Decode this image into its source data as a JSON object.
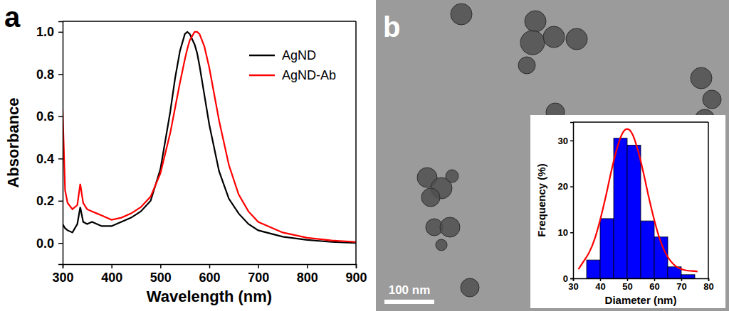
{
  "chart_data": [
    {
      "type": "line",
      "panel": "a",
      "x_label": "Wavelength (nm)",
      "y_label": "Absorbance",
      "x": [
        300,
        305,
        310,
        320,
        330,
        336,
        342,
        350,
        360,
        370,
        380,
        400,
        420,
        440,
        460,
        480,
        500,
        520,
        530,
        540,
        550,
        555,
        560,
        570,
        575,
        580,
        590,
        600,
        620,
        640,
        660,
        680,
        700,
        750,
        800,
        850,
        900
      ],
      "series": [
        {
          "name": "AgND",
          "color": "#000000",
          "values": [
            0.09,
            0.07,
            0.06,
            0.05,
            0.09,
            0.17,
            0.1,
            0.09,
            0.1,
            0.09,
            0.08,
            0.08,
            0.1,
            0.12,
            0.15,
            0.2,
            0.35,
            0.62,
            0.78,
            0.91,
            0.99,
            1.0,
            0.99,
            0.94,
            0.9,
            0.84,
            0.7,
            0.56,
            0.34,
            0.21,
            0.14,
            0.09,
            0.06,
            0.03,
            0.015,
            0.005,
            0.0
          ]
        },
        {
          "name": "AgND-Ab",
          "color": "#ff0000",
          "values": [
            0.63,
            0.25,
            0.19,
            0.16,
            0.18,
            0.28,
            0.19,
            0.16,
            0.15,
            0.14,
            0.13,
            0.11,
            0.12,
            0.14,
            0.17,
            0.22,
            0.33,
            0.52,
            0.64,
            0.76,
            0.87,
            0.92,
            0.96,
            1.0,
            1.0,
            0.99,
            0.93,
            0.83,
            0.58,
            0.37,
            0.23,
            0.15,
            0.1,
            0.05,
            0.025,
            0.012,
            0.005
          ]
        }
      ],
      "xlim": [
        300,
        900
      ],
      "xticks": [
        300,
        400,
        500,
        600,
        700,
        800,
        900
      ],
      "ylim": [
        -0.1,
        1.05
      ],
      "yticks": [
        {
          "value": 0,
          "label": "0.0"
        },
        {
          "value": 0.2,
          "label": "0.2"
        },
        {
          "value": 0.4,
          "label": "0.4"
        },
        {
          "value": 0.6,
          "label": "0.6"
        },
        {
          "value": 0.8,
          "label": "0.8"
        },
        {
          "value": 1.0,
          "label": "1.0"
        }
      ],
      "legend": "top-right"
    },
    {
      "type": "histogram",
      "panel": "b",
      "annotations": [
        "100 nm"
      ],
      "x_label": "Diameter (nm)",
      "y_label": "Frequency (%)",
      "bins": [
        35,
        40,
        45,
        50,
        55,
        60,
        65,
        70,
        75
      ],
      "values": [
        4,
        13,
        30.5,
        29,
        12.5,
        9,
        2.5,
        0.8
      ],
      "color": "#0000ff",
      "fit": {
        "color": "#ff0000",
        "x": [
          32,
          34,
          36,
          38,
          40,
          42,
          44,
          46,
          48,
          50,
          52,
          54,
          56,
          58,
          60,
          62,
          64,
          66,
          68,
          70,
          72,
          74,
          76
        ],
        "values": [
          2.0,
          3.8,
          5.7,
          8.6,
          12.7,
          17.6,
          23.0,
          27.8,
          31.3,
          32.5,
          31.3,
          27.8,
          23.0,
          17.6,
          12.7,
          8.6,
          5.7,
          3.8,
          2.6,
          2.0,
          1.7,
          1.6,
          1.5
        ]
      },
      "xlim": [
        30,
        80
      ],
      "xticks": [
        30,
        40,
        50,
        60,
        70,
        80
      ],
      "ylim": [
        0,
        34
      ],
      "yticks": [
        0,
        10,
        20,
        30
      ]
    }
  ]
}
